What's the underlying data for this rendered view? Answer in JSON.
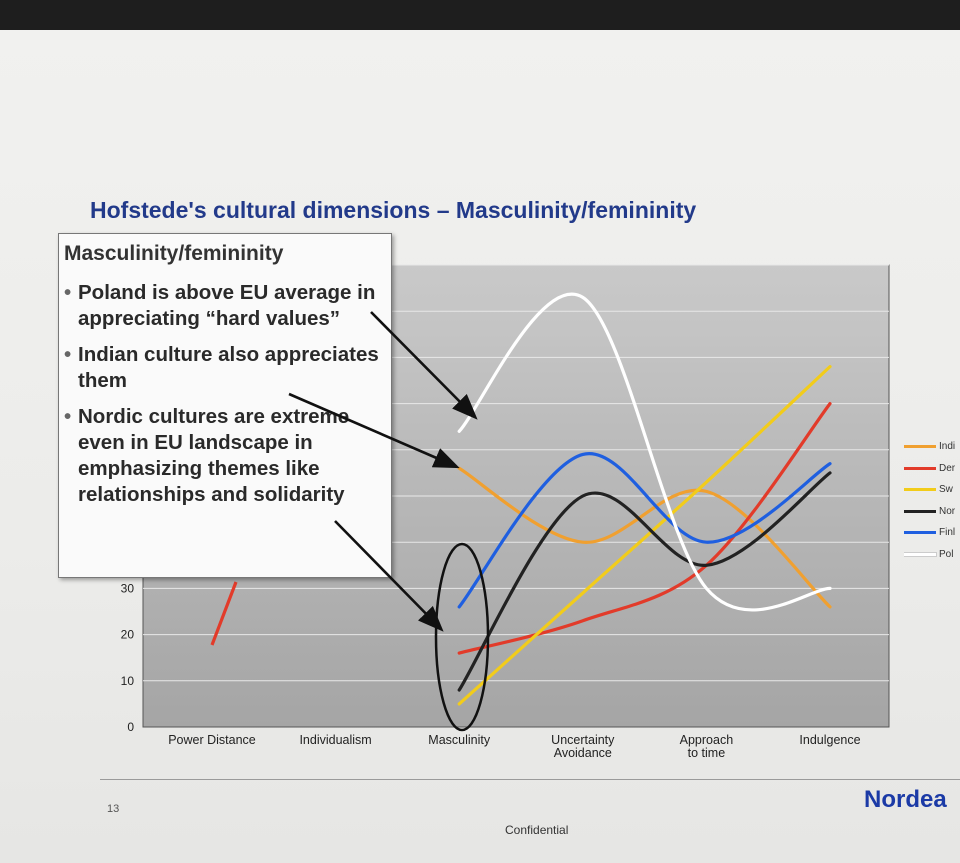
{
  "slide": {
    "title": "Hofstede's cultural dimensions – Masculinity/femininity",
    "page_number": "13",
    "logo": "Nordea",
    "footer": "Confidential"
  },
  "callout": {
    "heading": "Masculinity/femininity",
    "bullets": [
      "Poland is above EU average in appreciating “hard values”",
      "Indian culture also appreciates them",
      "Nordic cultures are extreme even in EU landscape in emphasizing themes like relationships and solidarity"
    ]
  },
  "chart_data": {
    "type": "line",
    "categories": [
      "Power Distance",
      "Individualism",
      "Masculinity",
      "Uncertainty Avoidance",
      "Approach to time",
      "Indulgence"
    ],
    "y_ticks_visible": [
      "0",
      "10",
      "20",
      "30"
    ],
    "ylim": [
      0,
      100
    ],
    "grid": true,
    "legend_position": "right",
    "series": [
      {
        "name": "Indi",
        "color": "#f0a030",
        "values": [
          null,
          null,
          56,
          40,
          51,
          26
        ]
      },
      {
        "name": "Der",
        "color": "#e23b2a",
        "values": [
          18,
          null,
          16,
          23,
          35,
          70
        ]
      },
      {
        "name": "Sw",
        "color": "#f2cc1a",
        "values": [
          null,
          null,
          5,
          29,
          53,
          78
        ]
      },
      {
        "name": "Nor",
        "color": "#222222",
        "values": [
          null,
          null,
          8,
          50,
          35,
          55
        ]
      },
      {
        "name": "Finl",
        "color": "#1f5fe0",
        "values": [
          null,
          null,
          26,
          59,
          40,
          57
        ]
      },
      {
        "name": "Pol",
        "color": "#ffffff",
        "values": [
          null,
          null,
          64,
          93,
          30,
          30
        ]
      }
    ]
  }
}
